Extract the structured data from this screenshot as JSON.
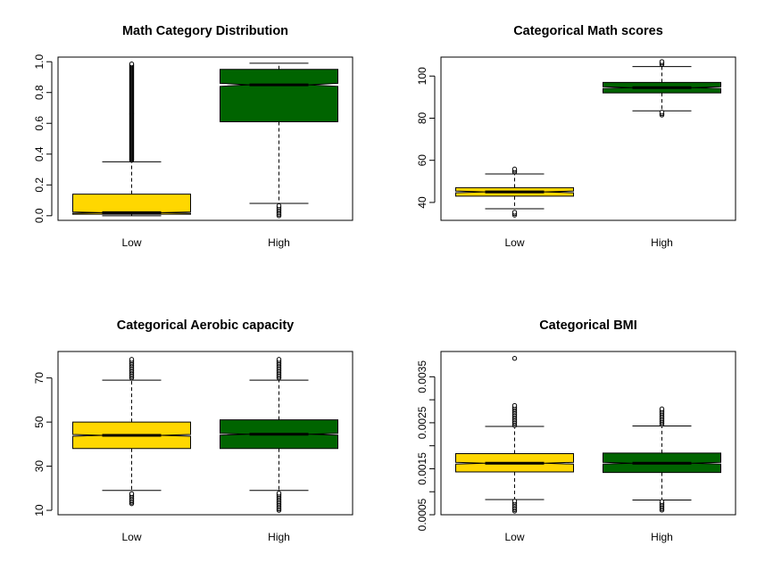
{
  "colors": {
    "low": "#FFD700",
    "high": "#006400"
  },
  "chart_data": [
    {
      "type": "boxplot",
      "title": "Math Category Distribution",
      "categories": [
        "Low",
        "High"
      ],
      "ylim": [
        -0.03,
        1.03
      ],
      "yticks": [
        0.0,
        0.2,
        0.4,
        0.6,
        0.8,
        1.0
      ],
      "ytick_labels": [
        "0.0",
        "0.2",
        "0.4",
        "0.6",
        "0.8",
        "1.0"
      ],
      "notch": true,
      "boxes": [
        {
          "category": "Low",
          "color": "#FFD700",
          "whisker_low": 0.0,
          "q1": 0.01,
          "median": 0.02,
          "q3": 0.14,
          "whisker_high": 0.35,
          "notch_half": 0.004,
          "outliers_high": [
            0.36,
            0.99
          ],
          "outliers_low": []
        },
        {
          "category": "High",
          "color": "#006400",
          "whisker_low": 0.08,
          "q1": 0.61,
          "median": 0.85,
          "q3": 0.95,
          "whisker_high": 0.99,
          "notch_half": 0.01,
          "outliers_high": [],
          "outliers_low": [
            0.0,
            0.07
          ]
        }
      ]
    },
    {
      "type": "boxplot",
      "title": "Categorical Math scores",
      "categories": [
        "Low",
        "High"
      ],
      "ylim": [
        31.5,
        109
      ],
      "yticks": [
        40,
        60,
        80,
        100
      ],
      "ytick_labels": [
        "40",
        "60",
        "80",
        "100"
      ],
      "notch": true,
      "boxes": [
        {
          "category": "Low",
          "color": "#FFD700",
          "whisker_low": 37,
          "q1": 43,
          "median": 45,
          "q3": 47,
          "whisker_high": 53.5,
          "notch_half": 0.4,
          "outliers_high": [
            54.5,
            56
          ],
          "outliers_low": [
            34,
            36
          ]
        },
        {
          "category": "High",
          "color": "#006400",
          "whisker_low": 83.5,
          "q1": 92,
          "median": 94.5,
          "q3": 97,
          "whisker_high": 104.5,
          "notch_half": 0.4,
          "outliers_high": [
            105.5,
            107
          ],
          "outliers_low": [
            81.5,
            83
          ]
        }
      ]
    },
    {
      "type": "boxplot",
      "title": "Categorical Aerobic capacity",
      "categories": [
        "Low",
        "High"
      ],
      "ylim": [
        8,
        82
      ],
      "yticks": [
        10,
        30,
        50,
        70
      ],
      "ytick_labels": [
        "10",
        "30",
        "50",
        "70"
      ],
      "notch": true,
      "boxes": [
        {
          "category": "Low",
          "color": "#FFD700",
          "whisker_low": 19,
          "q1": 38,
          "median": 44,
          "q3": 50,
          "whisker_high": 69,
          "notch_half": 0.4,
          "outliers_high": [
            70,
            79
          ],
          "outliers_low": [
            13,
            18
          ]
        },
        {
          "category": "High",
          "color": "#006400",
          "whisker_low": 19,
          "q1": 38,
          "median": 44.5,
          "q3": 51,
          "whisker_high": 69,
          "notch_half": 0.4,
          "outliers_high": [
            70,
            78.5
          ],
          "outliers_low": [
            10,
            18
          ]
        }
      ]
    },
    {
      "type": "boxplot",
      "title": "Categorical BMI",
      "categories": [
        "Low",
        "High"
      ],
      "ylim": [
        0.0005,
        0.00405
      ],
      "yticks": [
        0.0005,
        0.0015,
        0.0025,
        0.0035
      ],
      "ytick_labels": [
        "0.0005",
        "0.0015",
        "0.0025",
        "0.0035"
      ],
      "minor_yticks": [
        0.001,
        0.002,
        0.003
      ],
      "notch": true,
      "boxes": [
        {
          "category": "Low",
          "color": "#FFD700",
          "whisker_low": 0.00083,
          "q1": 0.00143,
          "median": 0.00162,
          "q3": 0.00183,
          "whisker_high": 0.00242,
          "notch_half": 2e-05,
          "outliers_high": [
            0.00244,
            0.0029,
            0.0039
          ],
          "outliers_low": [
            0.00058,
            0.0008
          ]
        },
        {
          "category": "High",
          "color": "#006400",
          "whisker_low": 0.00082,
          "q1": 0.00142,
          "median": 0.00162,
          "q3": 0.00184,
          "whisker_high": 0.00243,
          "notch_half": 2e-05,
          "outliers_high": [
            0.00246,
            0.00283
          ],
          "outliers_low": [
            0.0006,
            0.0008
          ]
        }
      ]
    }
  ]
}
